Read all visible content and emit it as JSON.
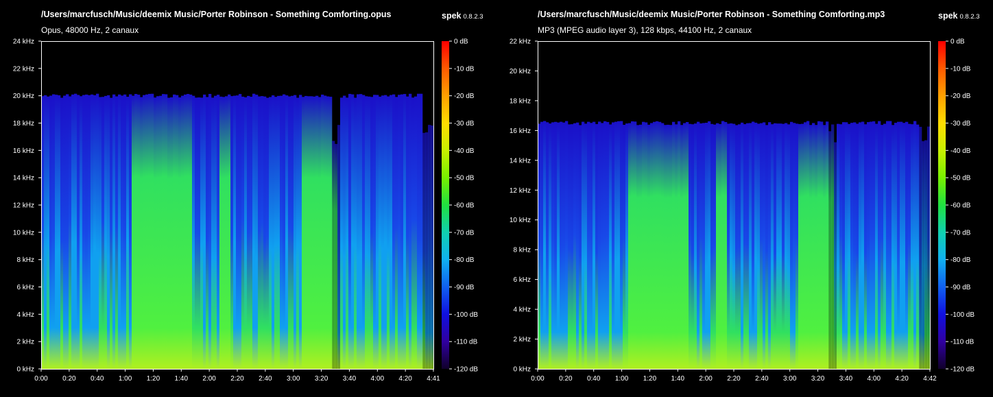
{
  "panels": [
    {
      "title": "/Users/marcfusch/Music/deemix Music/Porter Robinson - Something Comforting.opus",
      "info": "Opus, 48000 Hz, 2 canaux",
      "brand": "spek",
      "version": "0.8.2.3",
      "freq_max_khz": 24,
      "cutoff_khz": 20,
      "y_ticks": [
        "0 kHz",
        "2 kHz",
        "4 kHz",
        "6 kHz",
        "8 kHz",
        "10 kHz",
        "12 kHz",
        "14 kHz",
        "16 kHz",
        "18 kHz",
        "20 kHz",
        "22 kHz",
        "24 kHz"
      ],
      "x_ticks": [
        "0:00",
        "0:20",
        "0:40",
        "1:00",
        "1:20",
        "1:40",
        "2:00",
        "2:20",
        "2:40",
        "3:00",
        "3:20",
        "3:40",
        "4:00",
        "4:20",
        "4:41"
      ],
      "colors": {
        "spectrum_top": "#1a10c8",
        "spectrum_mid": "#10a0f0",
        "spectrum_low": "#30e060",
        "spectrum_base": "#b0f020",
        "background": "#000000"
      }
    },
    {
      "title": "/Users/marcfusch/Music/deemix Music/Porter Robinson - Something Comforting.mp3",
      "info": "MP3 (MPEG audio layer 3), 128 kbps, 44100 Hz, 2 canaux",
      "brand": "spek",
      "version": "0.8.2.3",
      "freq_max_khz": 22,
      "cutoff_khz": 16.5,
      "y_ticks": [
        "0 kHz",
        "2 kHz",
        "4 kHz",
        "6 kHz",
        "8 kHz",
        "10 kHz",
        "12 kHz",
        "14 kHz",
        "16 kHz",
        "18 kHz",
        "20 kHz",
        "22 kHz"
      ],
      "x_ticks": [
        "0:00",
        "0:20",
        "0:40",
        "1:00",
        "1:20",
        "1:40",
        "2:00",
        "2:20",
        "2:40",
        "3:00",
        "3:20",
        "3:40",
        "4:00",
        "4:20",
        "4:42"
      ],
      "colors": {
        "spectrum_top": "#1a10c8",
        "spectrum_mid": "#10a0f0",
        "spectrum_low": "#30e060",
        "spectrum_base": "#b0f020",
        "background": "#000000"
      }
    }
  ],
  "db_scale": [
    "0 dB",
    "-10 dB",
    "-20 dB",
    "-30 dB",
    "-40 dB",
    "-50 dB",
    "-60 dB",
    "-70 dB",
    "-80 dB",
    "-90 dB",
    "-100 dB",
    "-110 dB",
    "-120 dB"
  ],
  "db_gradient": [
    "#ff0000",
    "#ff5a00",
    "#ffa000",
    "#ffdc00",
    "#c8f000",
    "#78f000",
    "#20e040",
    "#10d0b0",
    "#10b0f0",
    "#1060f0",
    "#1010e0",
    "#3000a0",
    "#10002a"
  ]
}
